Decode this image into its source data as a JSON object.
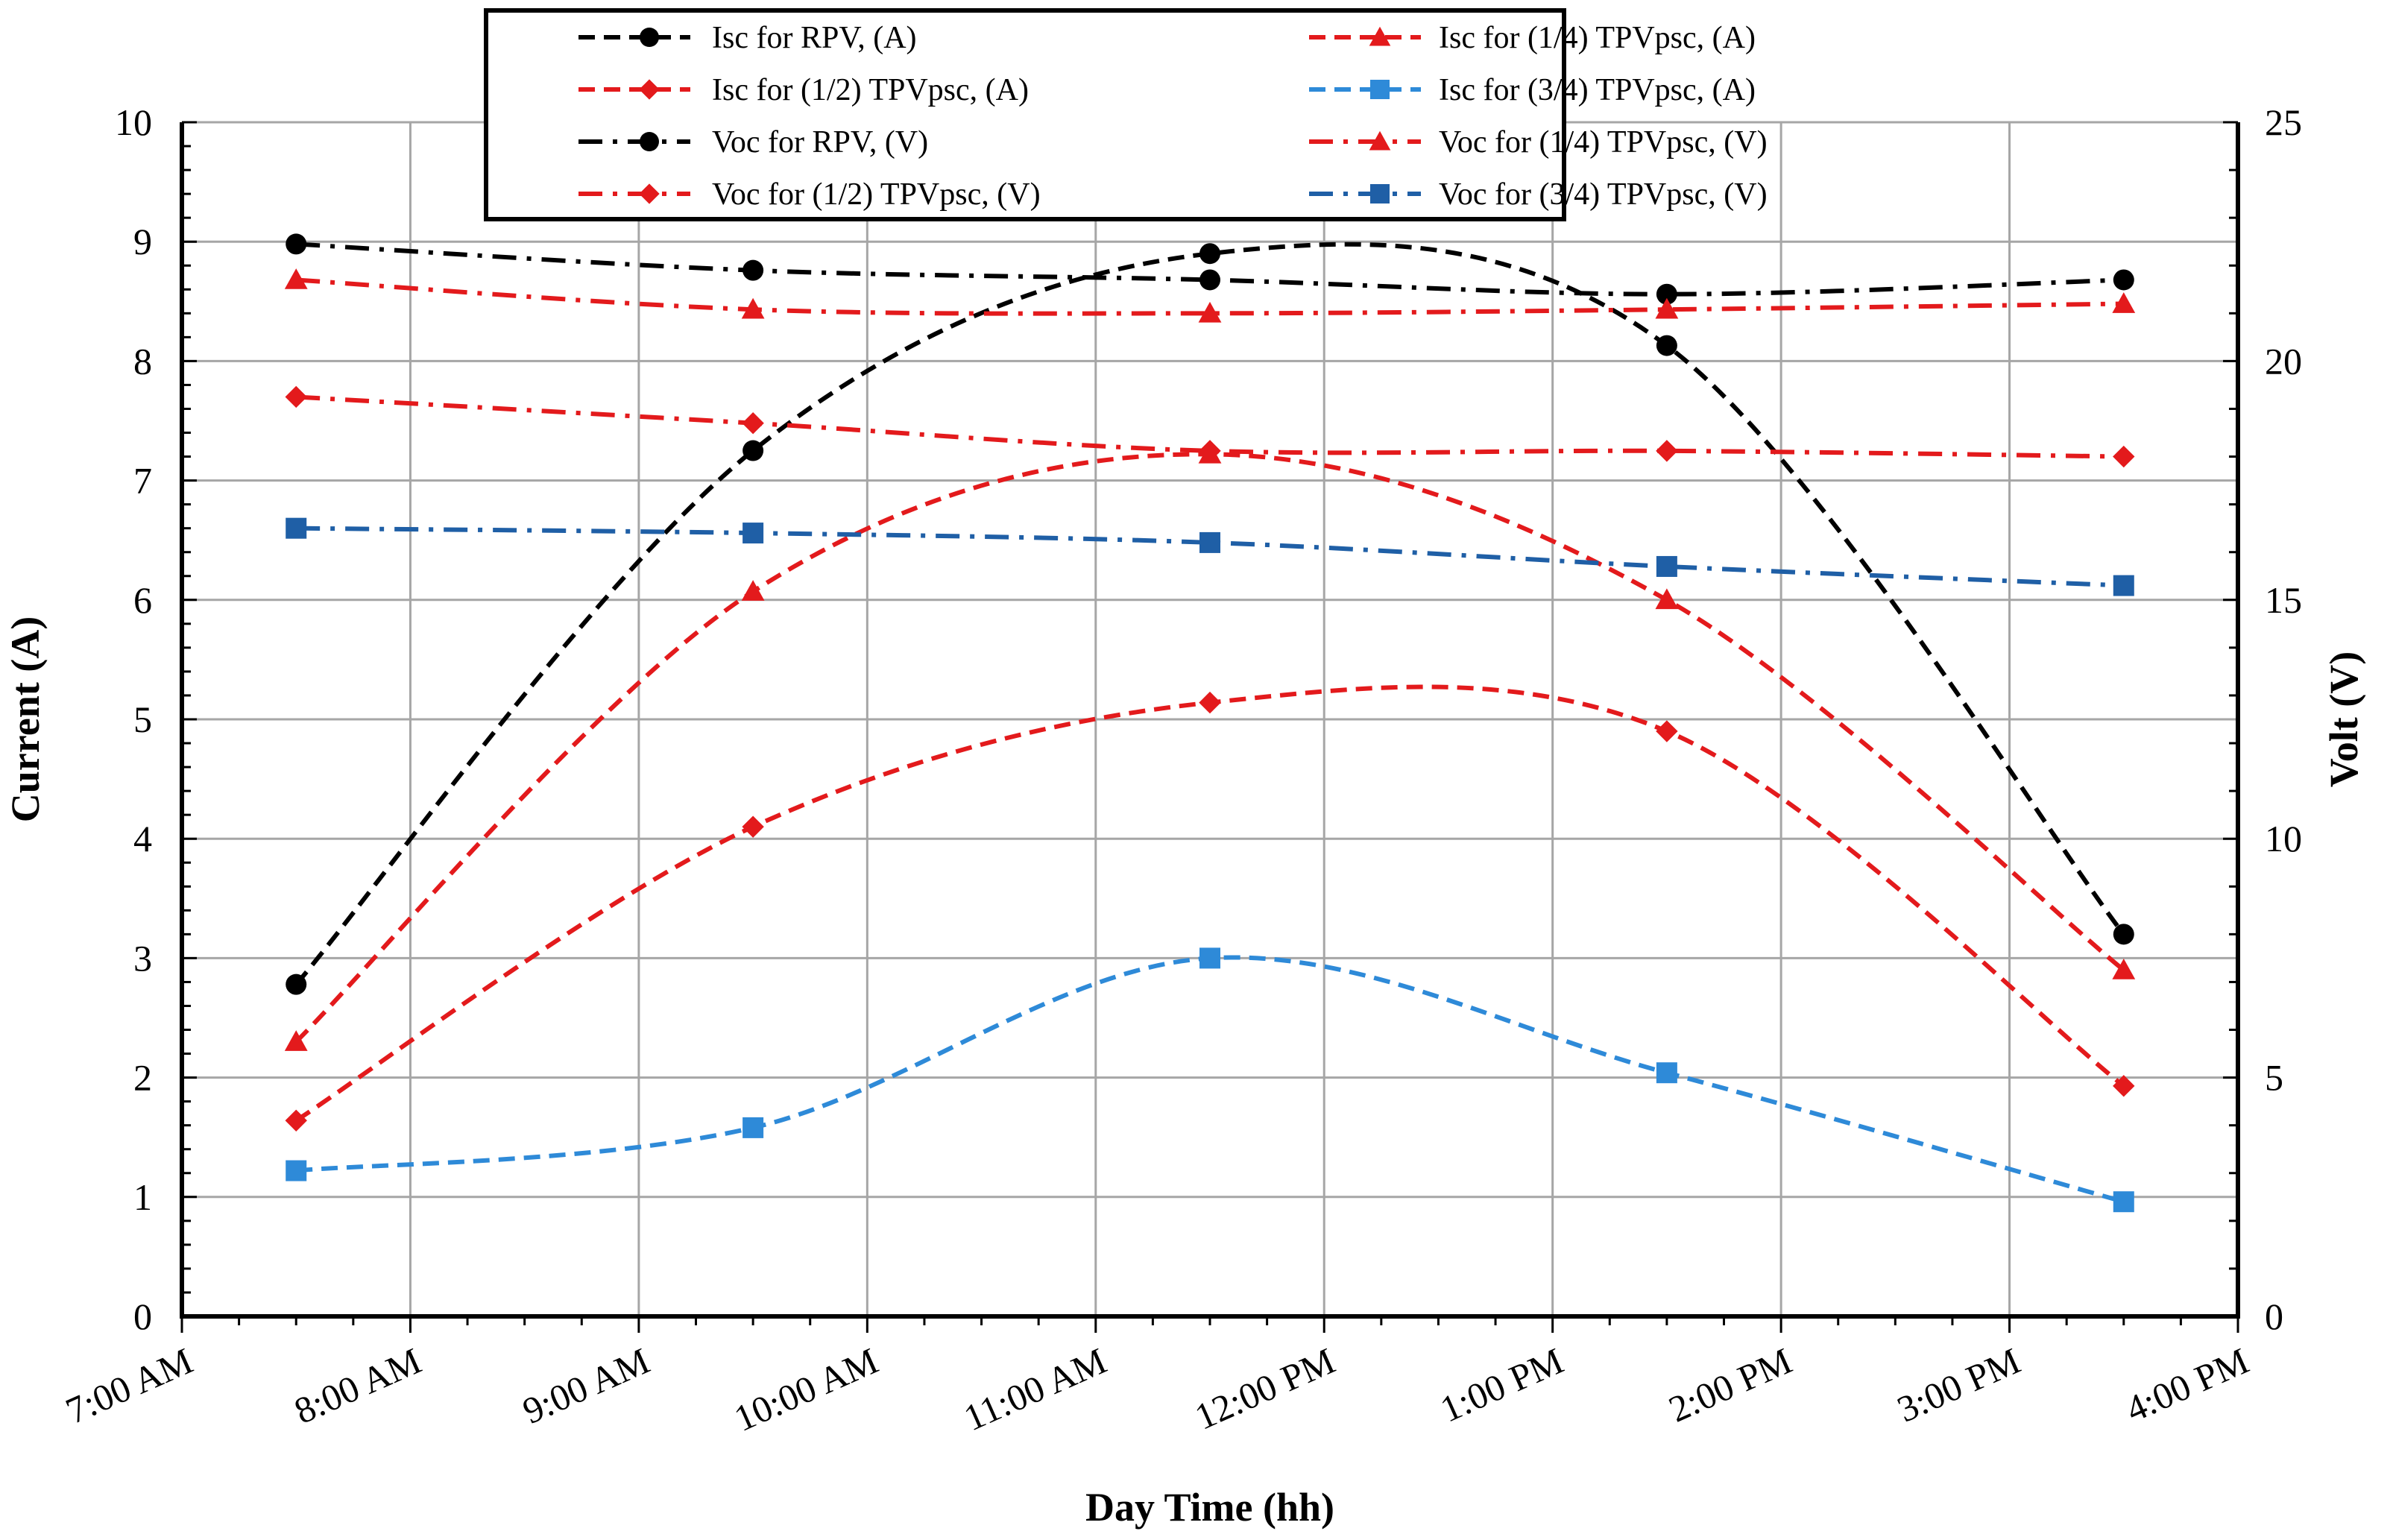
{
  "chart_data": {
    "type": "line",
    "xlabel": "Day Time (hh)",
    "ylabel": "Current (A)",
    "y2label": "Volt (V)",
    "x_tick_labels": [
      "7:00 AM",
      "8:00 AM",
      "9:00 AM",
      "10:00 AM",
      "11:00 AM",
      "12:00 PM",
      "1:00 PM",
      "2:00 PM",
      "3:00 PM",
      "4:00 PM"
    ],
    "x_hours": [
      7.5,
      9.5,
      11.5,
      13.5,
      15.5
    ],
    "xlim": [
      7,
      16
    ],
    "ylim": [
      0,
      10
    ],
    "y2lim": [
      0,
      25
    ],
    "y_ticks": [
      0,
      1,
      2,
      3,
      4,
      5,
      6,
      7,
      8,
      9,
      10
    ],
    "y2_ticks": [
      0,
      5,
      10,
      15,
      20,
      25
    ],
    "grid": true,
    "legend_position": "top-center",
    "series": [
      {
        "name": "Isc for RPV, (A)",
        "axis": "left",
        "dash": "dashed",
        "marker": "circle",
        "color": "#000000",
        "values": [
          2.78,
          7.25,
          8.9,
          8.13,
          3.2
        ]
      },
      {
        "name": "Isc for (1/4) TPVpsc, (A)",
        "axis": "left",
        "dash": "dashed",
        "marker": "triangle",
        "color": "#e31a1c",
        "values": [
          2.3,
          6.07,
          7.22,
          6.0,
          2.9
        ]
      },
      {
        "name": "Isc for (1/2) TPVpsc, (A)",
        "axis": "left",
        "dash": "dashed",
        "marker": "diamond",
        "color": "#e31a1c",
        "values": [
          1.64,
          4.1,
          5.14,
          4.9,
          1.93
        ]
      },
      {
        "name": "Isc for (3/4) TPVpsc, (A)",
        "axis": "left",
        "dash": "dashed",
        "marker": "square",
        "color": "#2e8ad8",
        "values": [
          1.22,
          1.58,
          3.0,
          2.04,
          0.96
        ]
      },
      {
        "name": "Voc for RPV,  (V)",
        "axis": "right",
        "dash": "dashdot",
        "marker": "circle",
        "color": "#000000",
        "values": [
          22.45,
          21.9,
          21.7,
          21.4,
          21.7
        ]
      },
      {
        "name": "Voc for (1/4) TPVpsc, (V)",
        "axis": "right",
        "dash": "dashdot",
        "marker": "triangle",
        "color": "#e31a1c",
        "values": [
          21.7,
          21.08,
          21.0,
          21.08,
          21.2
        ]
      },
      {
        "name": "Voc for (1/2) TPVpsc, (V)",
        "axis": "right",
        "dash": "dashdot",
        "marker": "diamond",
        "color": "#e31a1c",
        "values": [
          19.25,
          18.7,
          18.12,
          18.12,
          18.0
        ]
      },
      {
        "name": "Voc for (3/4) TPVpsc, (V)",
        "axis": "right",
        "dash": "dashdot",
        "marker": "square",
        "color": "#1f5fa6",
        "values": [
          16.5,
          16.4,
          16.2,
          15.7,
          15.3
        ]
      }
    ]
  }
}
